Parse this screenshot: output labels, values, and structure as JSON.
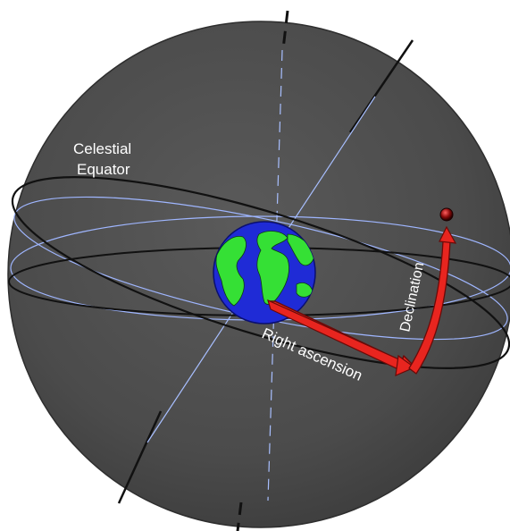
{
  "labels": {
    "celestial_equator_line1": "Celestial",
    "celestial_equator_line2": "Equator",
    "declination": "Declination",
    "right_ascension": "Right ascension"
  },
  "colors": {
    "sphere": "#4a4a4a",
    "sphere_edge": "#3a3a3a",
    "ocean": "#1f2bd6",
    "land": "#35e035",
    "arrow": "#e8251f",
    "arrow_dark": "#8a0f0b",
    "grid_line": "#9fb6ff",
    "star": "#7a0a0a",
    "equator_line": "#111111",
    "label_text": "#ffffff"
  }
}
